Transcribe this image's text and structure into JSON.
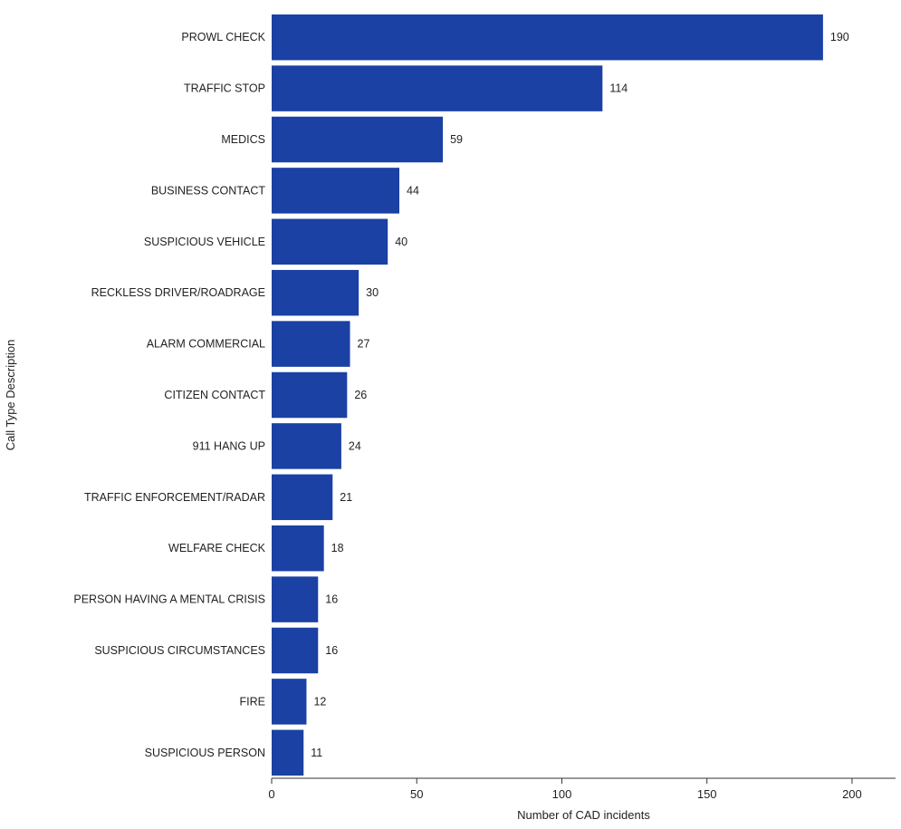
{
  "chart_data": {
    "type": "bar",
    "orientation": "horizontal",
    "categories": [
      "PROWL CHECK",
      "TRAFFIC STOP",
      "MEDICS",
      "BUSINESS CONTACT",
      "SUSPICIOUS VEHICLE",
      "RECKLESS DRIVER/ROADRAGE",
      "ALARM COMMERCIAL",
      "CITIZEN CONTACT",
      "911 HANG UP",
      "TRAFFIC ENFORCEMENT/RADAR",
      "WELFARE CHECK",
      "PERSON HAVING A MENTAL CRISIS",
      "SUSPICIOUS CIRCUMSTANCES",
      "FIRE",
      "SUSPICIOUS PERSON"
    ],
    "values": [
      190,
      114,
      59,
      44,
      40,
      30,
      27,
      26,
      24,
      21,
      18,
      16,
      16,
      12,
      11
    ],
    "xlabel": "Number of CAD incidents",
    "ylabel": "Call Type Description",
    "xlim": [
      0,
      215
    ],
    "xticks": [
      0,
      50,
      100,
      150,
      200
    ],
    "grid": false,
    "bar_color": "#1a41a3"
  }
}
